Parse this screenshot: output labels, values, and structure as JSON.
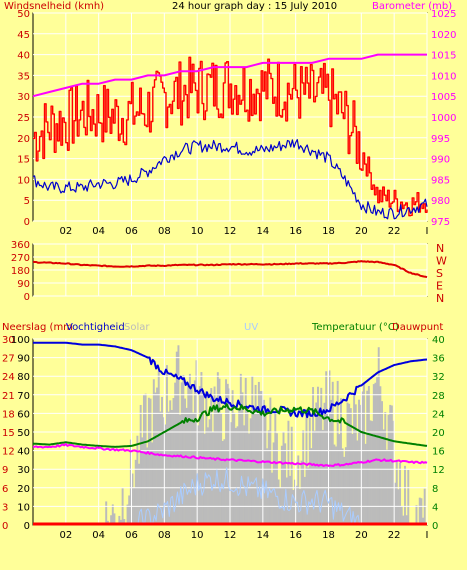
{
  "title": "24 hour graph day : 15 July 2010",
  "colors": {
    "background": "#ffff99",
    "grid": "#ffffff",
    "wind_series": "#ff0000",
    "avg_wind": "#0000cc",
    "barometer": "#ff00ff",
    "direction": "#dd0000",
    "humidity": "#0000dd",
    "temperature": "#008000",
    "dewpoint": "#ff00ff",
    "solar": "#bbbbbb",
    "uv": "#aaccff",
    "rain": "#ff0000",
    "left_axis_text": "#cc0000",
    "right_axis_text_top": "#ff00ff",
    "right_axis_text_mid": "#cc0000",
    "right_axis_text_bottom": "#008000"
  },
  "x_ticks": [
    "02",
    "04",
    "06",
    "08",
    "10",
    "12",
    "14",
    "16",
    "18",
    "20",
    "22",
    "I"
  ],
  "chart_data": [
    {
      "type": "line",
      "left_label": "Windsnelheid (kmh)",
      "right_label": "Barometer (mb)",
      "ylim_left": [
        0,
        50
      ],
      "ylim_right": [
        975,
        1025
      ],
      "y_ticks_left": [
        "50",
        "45",
        "40",
        "35",
        "30",
        "25",
        "20",
        "15",
        "10",
        "5",
        "0"
      ],
      "y_ticks_right": [
        "1025",
        "1020",
        "1015",
        "1010",
        "1005",
        "1000",
        "995",
        "990",
        "985",
        "980",
        "975"
      ],
      "x_hours": [
        0,
        1,
        2,
        3,
        4,
        5,
        6,
        7,
        8,
        9,
        10,
        11,
        12,
        13,
        14,
        15,
        16,
        17,
        18,
        19,
        20,
        21,
        22,
        23,
        24
      ],
      "series": [
        {
          "name": "Windsnelheid",
          "axis": "left",
          "values": [
            20,
            23,
            24,
            26,
            26,
            25,
            26,
            27,
            30,
            31,
            32,
            32,
            33,
            32,
            32,
            32,
            31,
            30,
            30,
            25,
            17,
            6,
            5,
            4,
            5
          ]
        },
        {
          "name": "Gemiddeld",
          "axis": "left",
          "values": [
            10,
            8,
            8,
            8,
            9,
            9,
            10,
            12,
            15,
            17,
            18,
            18,
            18,
            17,
            17,
            18,
            19,
            17,
            15,
            10,
            4,
            2,
            2,
            3,
            4
          ]
        },
        {
          "name": "Barometer",
          "axis": "right",
          "values": [
            1005,
            1006,
            1007,
            1008,
            1008,
            1009,
            1009,
            1010,
            1010,
            1011,
            1011,
            1012,
            1012,
            1012,
            1013,
            1013,
            1013,
            1013,
            1014,
            1014,
            1014,
            1015,
            1015,
            1015,
            1015
          ]
        }
      ]
    },
    {
      "type": "line",
      "right_letters": [
        "N",
        "W",
        "S",
        "E",
        "N"
      ],
      "ylim": [
        0,
        360
      ],
      "y_ticks": [
        "360",
        "270",
        "180",
        "90",
        "0"
      ],
      "x_hours": [
        0,
        1,
        2,
        3,
        4,
        5,
        6,
        7,
        8,
        9,
        10,
        11,
        12,
        13,
        14,
        15,
        16,
        17,
        18,
        19,
        20,
        21,
        22,
        23,
        24
      ],
      "series": [
        {
          "name": "Windrichting",
          "values": [
            235,
            230,
            225,
            215,
            210,
            205,
            205,
            210,
            210,
            215,
            215,
            215,
            220,
            220,
            220,
            220,
            225,
            225,
            225,
            230,
            240,
            235,
            215,
            160,
            130
          ]
        }
      ]
    },
    {
      "type": "area",
      "label_left_1": "Neerslag (mm",
      "label_left_2": "Vochtigheid",
      "label_solar": "Solar",
      "label_uv": "UV",
      "label_right": "Temperatuur (°C)",
      "label_right_2": "Dauwpunt",
      "ylim_humidity": [
        0,
        100
      ],
      "ylim_rain": [
        0,
        30
      ],
      "ylim_temperature": [
        0,
        40
      ],
      "y_ticks_humidity": [
        "100",
        "90",
        "80",
        "70",
        "60",
        "50",
        "40",
        "30",
        "20",
        "10",
        "0"
      ],
      "y_ticks_rain": [
        "30",
        "27",
        "24",
        "21",
        "18",
        "15",
        "12",
        "9",
        "6",
        "3",
        "0"
      ],
      "y_ticks_temperature": [
        "40",
        "36",
        "32",
        "28",
        "24",
        "20",
        "16",
        "12",
        "8",
        "4",
        "0"
      ],
      "x_hours": [
        0,
        1,
        2,
        3,
        4,
        5,
        6,
        7,
        8,
        9,
        10,
        11,
        12,
        13,
        14,
        15,
        16,
        17,
        18,
        19,
        20,
        21,
        22,
        23,
        24
      ],
      "series": [
        {
          "name": "Vochtigheid",
          "axis": "humidity",
          "values": [
            98,
            98,
            98,
            97,
            97,
            96,
            94,
            90,
            82,
            78,
            73,
            68,
            66,
            64,
            62,
            62,
            60,
            60,
            62,
            68,
            75,
            82,
            86,
            88,
            89
          ]
        },
        {
          "name": "Temperatuur",
          "axis": "temperature",
          "values": [
            17.5,
            17.3,
            17.8,
            17.3,
            17,
            16.8,
            17,
            18,
            20,
            22,
            23,
            25,
            25.5,
            25,
            24,
            24.5,
            25,
            24.5,
            23,
            22,
            20,
            19,
            18,
            17.5,
            17
          ]
        },
        {
          "name": "Dauwpunt",
          "axis": "temperature",
          "values": [
            16.8,
            16.8,
            17.2,
            16.8,
            16.5,
            16.2,
            16,
            15.5,
            15,
            14.8,
            14.5,
            14.2,
            14,
            13.8,
            13.6,
            13.4,
            13.2,
            13,
            12.8,
            13,
            13.5,
            14,
            13.8,
            13.5,
            13.4
          ]
        },
        {
          "name": "Solar",
          "axis": "humidity",
          "values": [
            0,
            0,
            0,
            0,
            0,
            5,
            30,
            60,
            70,
            80,
            70,
            65,
            60,
            70,
            55,
            40,
            35,
            55,
            65,
            55,
            55,
            80,
            40,
            5,
            0
          ]
        },
        {
          "name": "UV",
          "axis": "humidity",
          "values": [
            0,
            0,
            0,
            0,
            0,
            0,
            0,
            3,
            8,
            15,
            22,
            25,
            24,
            20,
            18,
            15,
            12,
            13,
            12,
            5,
            1,
            0,
            0,
            0,
            0
          ]
        },
        {
          "name": "Neerslag",
          "axis": "rain",
          "values": [
            0,
            0,
            0,
            0,
            0,
            0,
            0,
            0,
            0,
            0,
            0,
            0,
            0,
            0,
            0,
            0,
            0,
            0,
            0,
            0,
            0,
            0,
            0,
            0,
            0
          ]
        }
      ]
    }
  ]
}
